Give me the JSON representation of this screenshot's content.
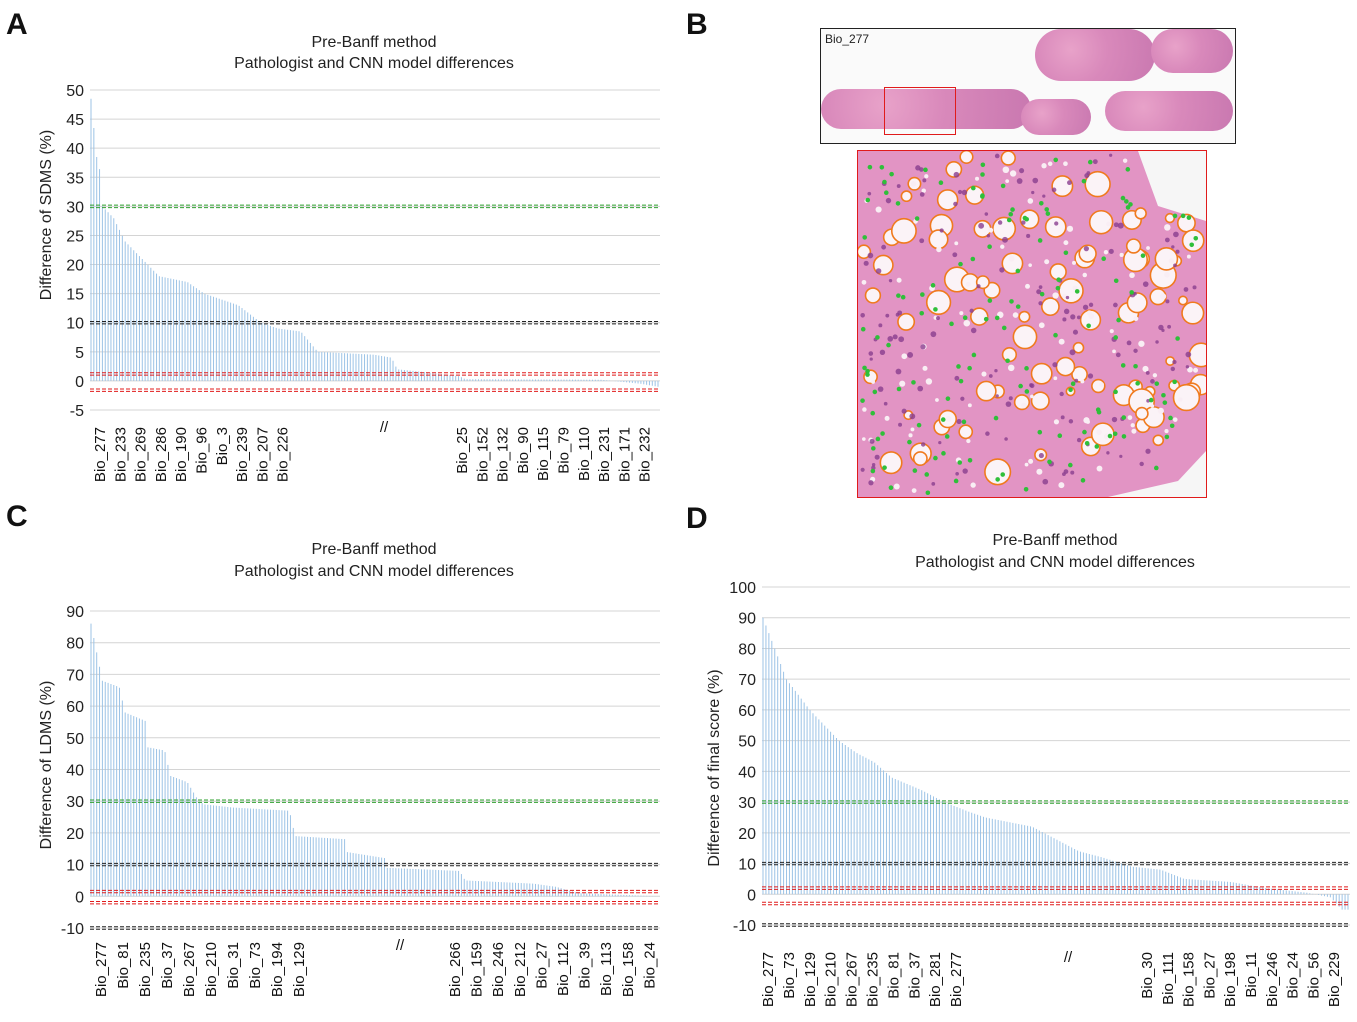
{
  "panels": {
    "A": {
      "letter": "A",
      "title_line1": "Pre-Banff method",
      "title_line2": "Pathologist and CNN model differences",
      "ylabel": "Difference of SDMS (%)",
      "break_mark": "//"
    },
    "B": {
      "letter": "B",
      "image_label": "Bio_277"
    },
    "C": {
      "letter": "C",
      "title_line1": "Pre-Banff method",
      "title_line2": "Pathologist and CNN model differences",
      "ylabel": "Difference of LDMS (%)",
      "break_mark": "//"
    },
    "D": {
      "letter": "D",
      "title_line1": "Pre-Banff method",
      "title_line2": "Pathologist and CNN model differences",
      "ylabel": "Difference of final score (%)",
      "break_mark": "//"
    }
  },
  "chart_data": [
    {
      "panel": "A",
      "type": "bar",
      "title": "Pre-Banff method\nPathologist and CNN model differences",
      "ylabel": "Difference of SDMS (%)",
      "ylim": [
        -5,
        50
      ],
      "yticks": [
        -5,
        0,
        5,
        10,
        15,
        20,
        25,
        30,
        35,
        40,
        45,
        50
      ],
      "reference_lines": [
        {
          "value": 30,
          "color": "#2ea02e"
        },
        {
          "value": 10,
          "color": "#222222"
        },
        {
          "value": 1.2,
          "color": "#e01b1b"
        },
        {
          "value": -1.6,
          "color": "#e01b1b"
        }
      ],
      "tick_labels_left": [
        "Bio_277",
        "Bio_233",
        "Bio_269",
        "Bio_286",
        "Bio_190",
        "Bio_96",
        "Bio_3",
        "Bio_239",
        "Bio_207",
        "Bio_226"
      ],
      "tick_labels_right": [
        "Bio_25",
        "Bio_152",
        "Bio_132",
        "Bio_90",
        "Bio_115",
        "Bio_79",
        "Bio_110",
        "Bio_231",
        "Bio_171",
        "Bio_232"
      ],
      "profile": [
        [
          0,
          48.5
        ],
        [
          0.01,
          38.5
        ],
        [
          0.015,
          36.5
        ],
        [
          0.02,
          30
        ],
        [
          0.04,
          28
        ],
        [
          0.06,
          24
        ],
        [
          0.1,
          20
        ],
        [
          0.12,
          18
        ],
        [
          0.17,
          17
        ],
        [
          0.2,
          15
        ],
        [
          0.26,
          13
        ],
        [
          0.3,
          10
        ],
        [
          0.33,
          9
        ],
        [
          0.37,
          8.5
        ],
        [
          0.4,
          5
        ],
        [
          0.5,
          4.5
        ],
        [
          0.53,
          4
        ],
        [
          0.54,
          2
        ],
        [
          0.59,
          1.5
        ],
        [
          0.65,
          0.8
        ],
        [
          0.66,
          0.3
        ],
        [
          0.9,
          0.2
        ],
        [
          0.97,
          -0.5
        ],
        [
          1.0,
          -1
        ]
      ],
      "bar_count": 200
    },
    {
      "panel": "C",
      "type": "bar",
      "title": "Pre-Banff method\nPathologist and CNN model differences",
      "ylabel": "Difference of LDMS (%)",
      "ylim": [
        -10,
        90
      ],
      "yticks": [
        -10,
        0,
        10,
        20,
        30,
        40,
        50,
        60,
        70,
        80,
        90
      ],
      "reference_lines": [
        {
          "value": 30,
          "color": "#2ea02e"
        },
        {
          "value": 10,
          "color": "#222222"
        },
        {
          "value": 1.5,
          "color": "#e01b1b"
        },
        {
          "value": -2,
          "color": "#e01b1b"
        },
        {
          "value": -10,
          "color": "#222222"
        }
      ],
      "tick_labels_left": [
        "Bio_277",
        "Bio_81",
        "Bio_235",
        "Bio_37",
        "Bio_267",
        "Bio_210",
        "Bio_31",
        "Bio_73",
        "Bio_194",
        "Bio_129"
      ],
      "tick_labels_right": [
        "Bio_266",
        "Bio_159",
        "Bio_246",
        "Bio_212",
        "Bio_27",
        "Bio_112",
        "Bio_39",
        "Bio_113",
        "Bio_158",
        "Bio_24"
      ],
      "profile": [
        [
          0,
          86
        ],
        [
          0.01,
          77
        ],
        [
          0.02,
          68
        ],
        [
          0.05,
          66
        ],
        [
          0.06,
          58
        ],
        [
          0.1,
          55
        ],
        [
          0.1,
          47
        ],
        [
          0.13,
          46
        ],
        [
          0.14,
          38
        ],
        [
          0.17,
          36
        ],
        [
          0.19,
          30
        ],
        [
          0.2,
          29
        ],
        [
          0.25,
          28
        ],
        [
          0.35,
          27
        ],
        [
          0.36,
          19
        ],
        [
          0.45,
          18
        ],
        [
          0.45,
          14
        ],
        [
          0.52,
          12
        ],
        [
          0.52,
          9
        ],
        [
          0.65,
          8
        ],
        [
          0.66,
          5
        ],
        [
          0.78,
          4
        ],
        [
          0.82,
          3
        ],
        [
          0.86,
          1
        ],
        [
          1.0,
          0
        ]
      ],
      "bar_count": 200
    },
    {
      "panel": "D",
      "type": "bar",
      "title": "Pre-Banff method\nPathologist and CNN model differences",
      "ylabel": "Difference of final score (%)",
      "ylim": [
        -10,
        100
      ],
      "yticks": [
        -10,
        0,
        10,
        20,
        30,
        40,
        50,
        60,
        70,
        80,
        90,
        100
      ],
      "reference_lines": [
        {
          "value": 30,
          "color": "#2ea02e"
        },
        {
          "value": 10,
          "color": "#222222"
        },
        {
          "value": 2,
          "color": "#e01b1b"
        },
        {
          "value": -3,
          "color": "#e01b1b"
        },
        {
          "value": -10,
          "color": "#222222"
        }
      ],
      "tick_labels_left": [
        "Bio_277",
        "Bio_73",
        "Bio_129",
        "Bio_210",
        "Bio_267",
        "Bio_235",
        "Bio_81",
        "Bio_37",
        "Bio_281",
        "Bio_277"
      ],
      "tick_labels_right": [
        "Bio_30",
        "Bio_111",
        "Bio_158",
        "Bio_27",
        "Bio_198",
        "Bio_11",
        "Bio_246",
        "Bio_24",
        "Bio_56",
        "Bio_229"
      ],
      "profile": [
        [
          0,
          90
        ],
        [
          0.01,
          85
        ],
        [
          0.02,
          80
        ],
        [
          0.03,
          75
        ],
        [
          0.04,
          70
        ],
        [
          0.06,
          65
        ],
        [
          0.08,
          60
        ],
        [
          0.1,
          56
        ],
        [
          0.13,
          50
        ],
        [
          0.16,
          46
        ],
        [
          0.19,
          43
        ],
        [
          0.22,
          38
        ],
        [
          0.27,
          34
        ],
        [
          0.31,
          30
        ],
        [
          0.35,
          27
        ],
        [
          0.38,
          25
        ],
        [
          0.46,
          22
        ],
        [
          0.5,
          18
        ],
        [
          0.54,
          14
        ],
        [
          0.58,
          12
        ],
        [
          0.63,
          9
        ],
        [
          0.68,
          8
        ],
        [
          0.72,
          5
        ],
        [
          0.8,
          4
        ],
        [
          0.86,
          2
        ],
        [
          0.93,
          0.5
        ],
        [
          0.97,
          -1
        ],
        [
          0.99,
          -5
        ],
        [
          1.0,
          -5
        ]
      ],
      "bar_count": 200
    }
  ],
  "colors": {
    "bar": "#9cc3e6",
    "grid": "#d4d4d4",
    "green_line": "#2ea02e",
    "black_line": "#222222",
    "red_line": "#e01b1b"
  }
}
